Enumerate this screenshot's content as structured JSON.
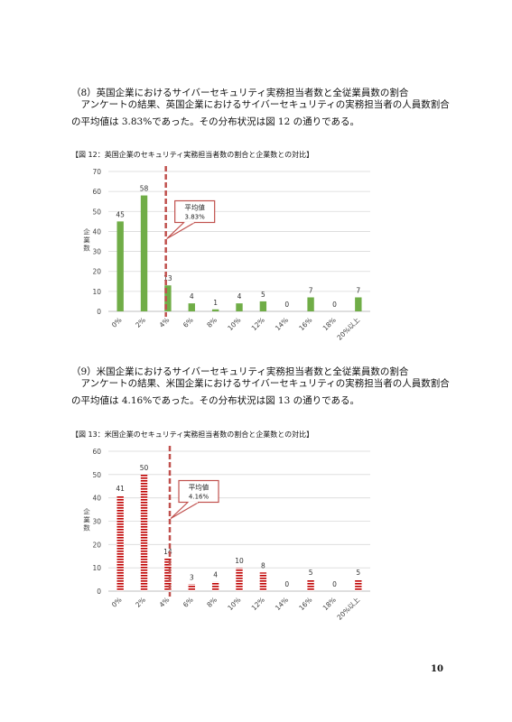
{
  "section8": {
    "heading": "（8）英国企業におけるサイバーセキュリティ実務担当者数と全従業員数の割合",
    "line1": "アンケートの結果、英国企業におけるサイバーセキュリティの実務担当者の人員数割合",
    "line2": "の平均値は 3.83%であった。その分布状況は図 12 の通りである。"
  },
  "section9": {
    "heading": "（9）米国企業におけるサイバーセキュリティ実務担当者数と全従業員数の割合",
    "line1": "アンケートの結果、米国企業におけるサイバーセキュリティの実務担当者の人員数割合",
    "line2": "の平均値は 4.16%であった。その分布状況は図 13 の通りである。"
  },
  "page_number": "10",
  "chart_data": [
    {
      "type": "bar",
      "title": "【図 12：英国企業のセキュリティ実務担当者数の割合と企業数との対比】",
      "ylabel": "企業数",
      "categories": [
        "0%",
        "2%",
        "4%",
        "6%",
        "8%",
        "10%",
        "12%",
        "14%",
        "16%",
        "18%",
        "20%以上"
      ],
      "values": [
        45,
        58,
        13,
        4,
        1,
        4,
        5,
        0,
        7,
        0,
        7
      ],
      "ylim": [
        0,
        70
      ],
      "yticks": [
        "0",
        "10",
        "20",
        "30",
        "40",
        "50",
        "60",
        "70"
      ],
      "grid": true,
      "bar_color": "#70ad47",
      "bar_style": "solid",
      "mean_line": {
        "value": 3.83,
        "label": "平均値",
        "value_label": "3.83%",
        "color": "#c0504d"
      }
    },
    {
      "type": "bar",
      "title": "【図 13：米国企業のセキュリティ実務担当者数の割合と企業数との対比】",
      "ylabel": "企業数",
      "categories": [
        "0%",
        "2%",
        "4%",
        "6%",
        "8%",
        "10%",
        "12%",
        "14%",
        "16%",
        "18%",
        "20%以上"
      ],
      "values": [
        41,
        50,
        14,
        3,
        4,
        10,
        8,
        0,
        5,
        0,
        5
      ],
      "ylim": [
        0,
        60
      ],
      "yticks": [
        "0",
        "10",
        "20",
        "30",
        "40",
        "50",
        "60"
      ],
      "grid": true,
      "bar_color": "#c00000",
      "bar_style": "striped",
      "mean_line": {
        "value": 4.16,
        "label": "平均値",
        "value_label": "4.16%",
        "color": "#c0504d"
      }
    }
  ]
}
